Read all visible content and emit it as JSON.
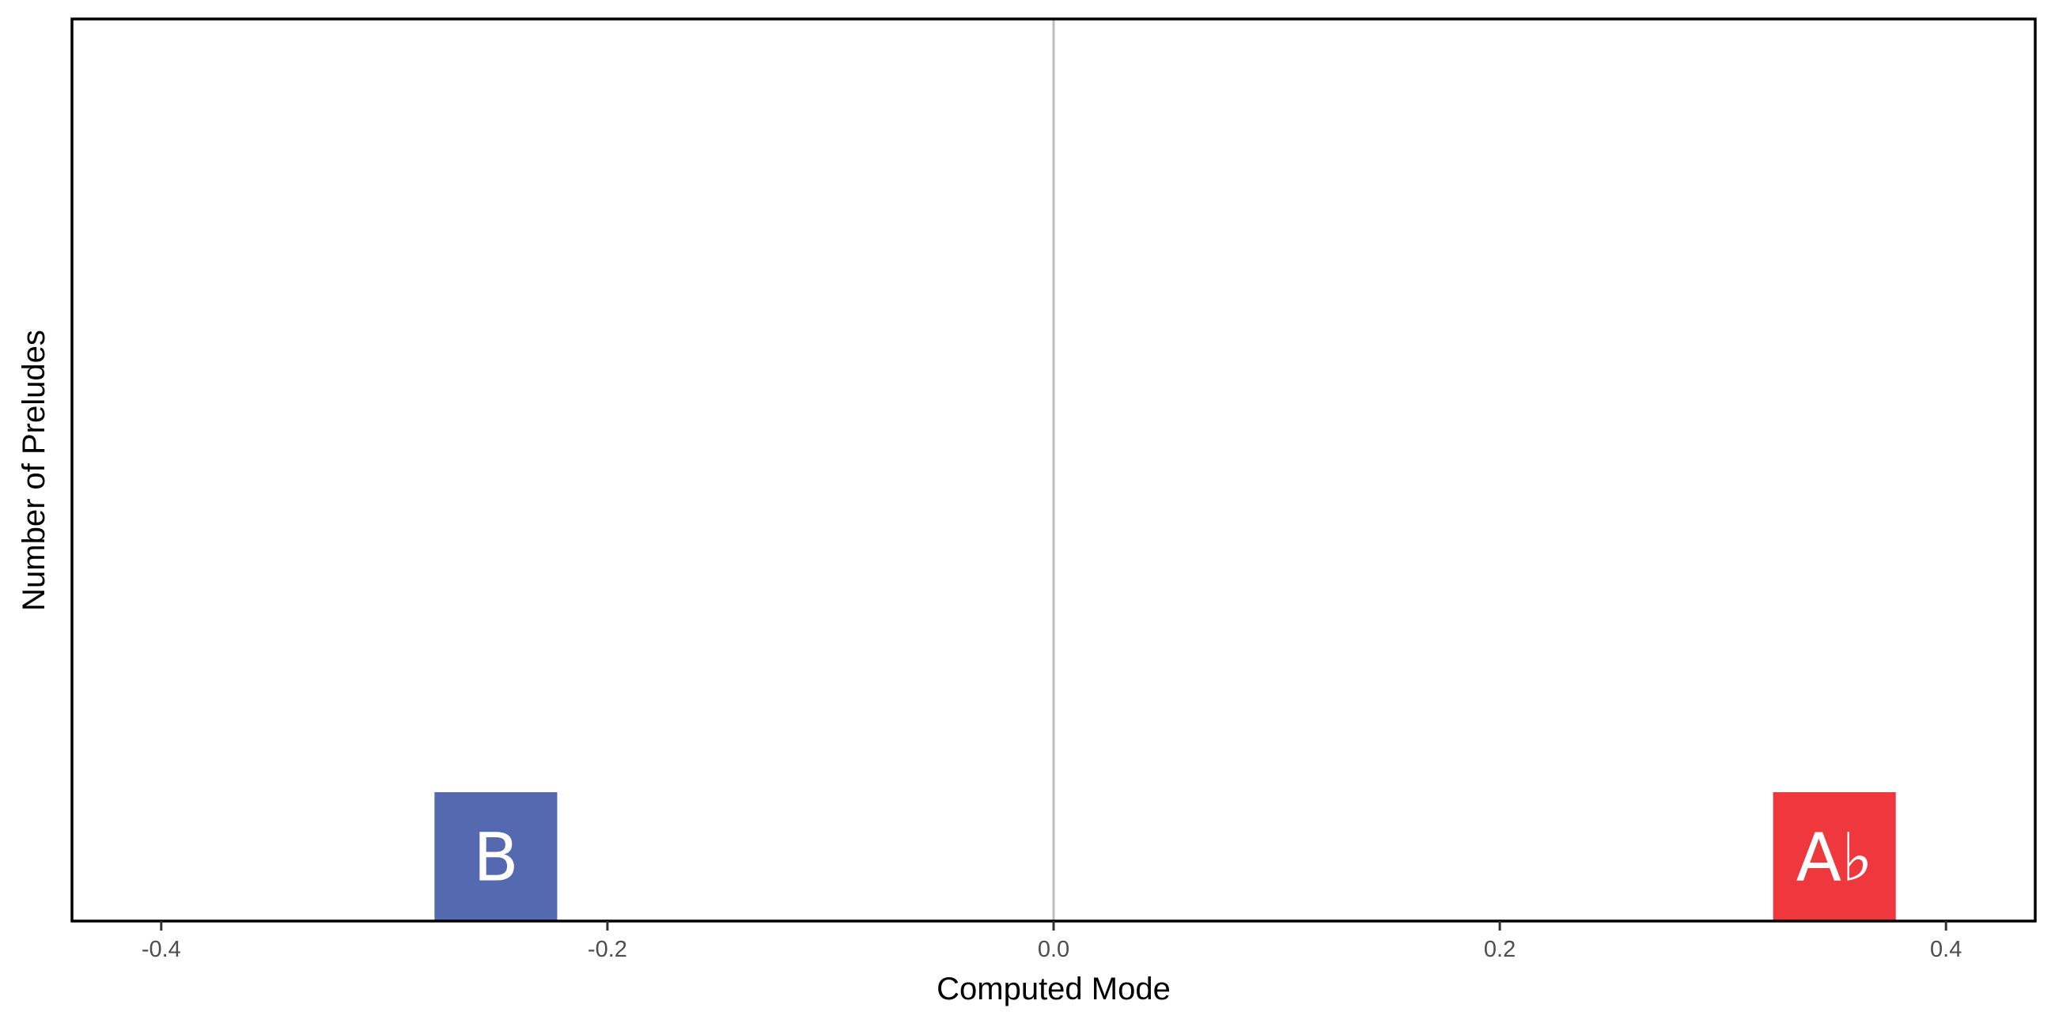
{
  "chart_data": {
    "type": "tile",
    "xlabel": "Computed Mode",
    "ylabel": "Number of Preludes",
    "xlim": [
      -0.44,
      0.44
    ],
    "x_ticks": [
      -0.4,
      -0.2,
      0.0,
      0.2,
      0.4
    ],
    "x_tick_labels": [
      "-0.4",
      "-0.2",
      "0.0",
      "0.2",
      "0.4"
    ],
    "reference_line_x": 0.0,
    "ylim": [
      0,
      7
    ],
    "grid": false,
    "points": [
      {
        "label": "B",
        "x": -0.25,
        "y": 1,
        "color": "#5469af"
      },
      {
        "label": "A♭",
        "x": 0.35,
        "y": 1,
        "color": "#ef373e"
      }
    ]
  }
}
